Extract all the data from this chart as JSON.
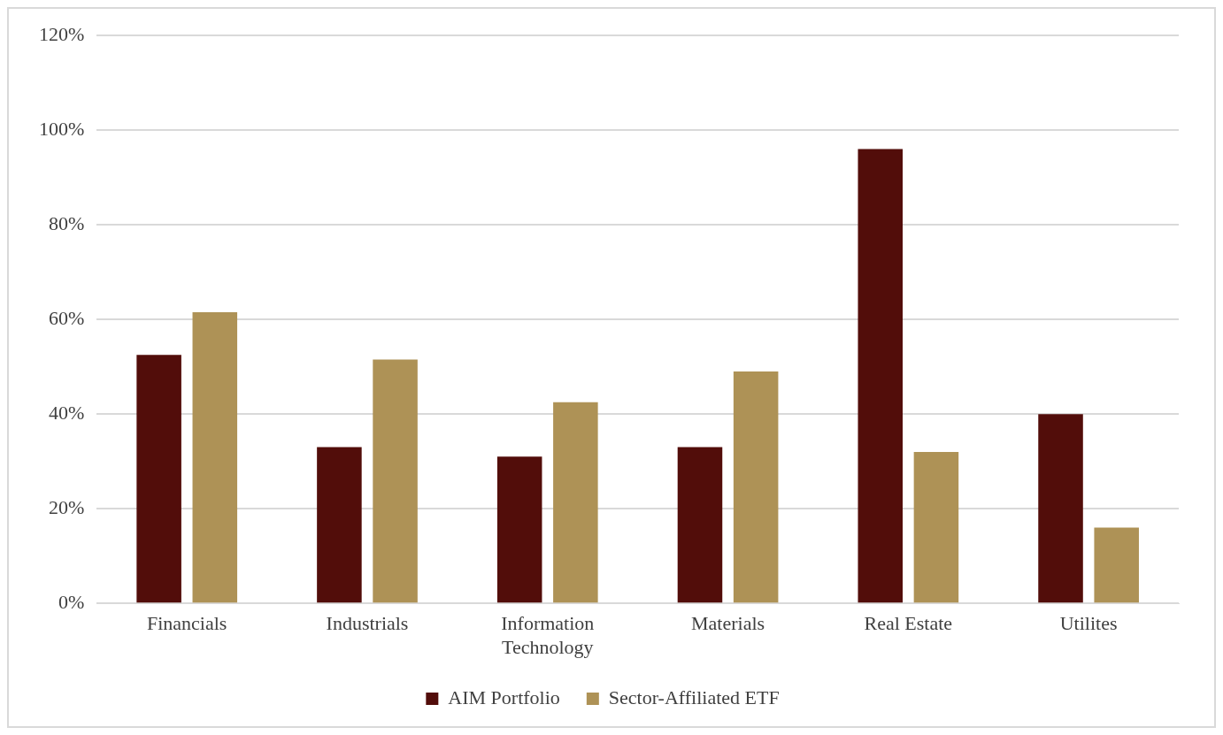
{
  "chart_data": {
    "type": "bar",
    "categories": [
      "Financials",
      "Industrials",
      "Information Technology",
      "Materials",
      "Real Estate",
      "Utilites"
    ],
    "series": [
      {
        "name": "AIM Portfolio",
        "color": "#520d0a",
        "values": [
          52.5,
          33,
          31,
          33,
          96,
          40
        ]
      },
      {
        "name": "Sector-Affiliated ETF",
        "color": "#ae9256",
        "values": [
          61.5,
          51.5,
          42.5,
          49,
          32,
          16
        ]
      }
    ],
    "ylim": [
      0,
      120
    ],
    "yticks": [
      {
        "value": 0,
        "label": "0%"
      },
      {
        "value": 20,
        "label": "20%"
      },
      {
        "value": 40,
        "label": "40%"
      },
      {
        "value": 60,
        "label": "60%"
      },
      {
        "value": 80,
        "label": "80%"
      },
      {
        "value": 100,
        "label": "100%"
      },
      {
        "value": 120,
        "label": "120%"
      }
    ],
    "grid": "y",
    "legend": "bottom"
  }
}
